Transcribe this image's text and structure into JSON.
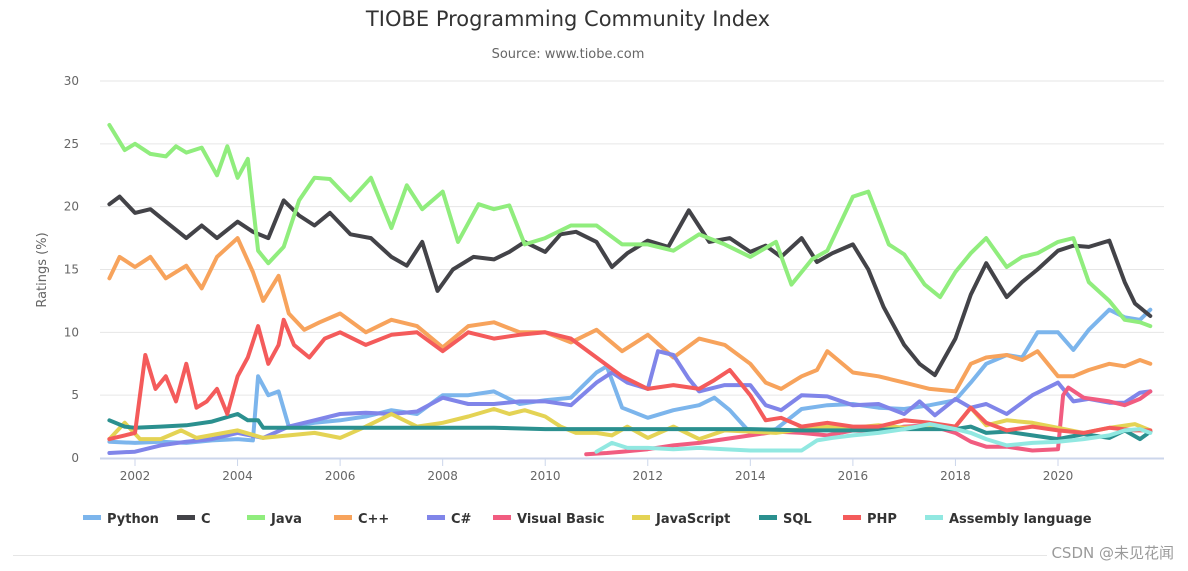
{
  "chart_data": {
    "type": "line",
    "title": "TIOBE Programming Community Index",
    "subtitle": "Source: www.tiobe.com",
    "xlabel": "",
    "ylabel": "Ratings (%)",
    "xlim": [
      2001.5,
      2021.9
    ],
    "ylim": [
      0,
      30
    ],
    "x_ticks": [
      2002,
      2004,
      2006,
      2008,
      2010,
      2012,
      2014,
      2016,
      2018,
      2020
    ],
    "x_tick_labels": [
      "2002",
      "2004",
      "2006",
      "2008",
      "2010",
      "2012",
      "2014",
      "2016",
      "2018",
      "2020"
    ],
    "y_ticks": [
      0,
      5,
      10,
      15,
      20,
      25,
      30
    ],
    "y_tick_labels": [
      "0",
      "5",
      "10",
      "15",
      "20",
      "25",
      "30"
    ],
    "grid": true,
    "legend_position": "bottom",
    "series": [
      {
        "name": "Python",
        "color": "#7cb5ec",
        "x": [
          2001.5,
          2002,
          2002.5,
          2003,
          2003.5,
          2004,
          2004.3,
          2004.4,
          2004.6,
          2004.8,
          2005,
          2005.5,
          2006,
          2006.5,
          2007,
          2007.5,
          2008,
          2008.5,
          2009,
          2009.5,
          2010,
          2010.5,
          2011,
          2011.2,
          2011.5,
          2012,
          2012.5,
          2013,
          2013.3,
          2013.6,
          2014,
          2014.5,
          2015,
          2015.5,
          2016,
          2016.5,
          2017,
          2017.5,
          2018,
          2018.3,
          2018.6,
          2019,
          2019.3,
          2019.6,
          2020,
          2020.3,
          2020.6,
          2021,
          2021.3,
          2021.6,
          2021.8
        ],
        "values": [
          1.3,
          1.2,
          1.3,
          1.2,
          1.4,
          1.5,
          1.4,
          6.5,
          5.0,
          5.3,
          2.5,
          2.8,
          3.0,
          3.3,
          3.8,
          3.5,
          5.0,
          5.0,
          5.3,
          4.3,
          4.6,
          4.8,
          6.8,
          7.3,
          4.0,
          3.2,
          3.8,
          4.2,
          4.8,
          3.8,
          2.0,
          2.3,
          3.9,
          4.2,
          4.3,
          4.0,
          3.9,
          4.2,
          4.6,
          6.0,
          7.5,
          8.2,
          8.0,
          10.0,
          10.0,
          8.6,
          10.2,
          11.8,
          11.2,
          11.0,
          11.8
        ]
      },
      {
        "name": "C",
        "color": "#434348",
        "x": [
          2001.5,
          2001.7,
          2002,
          2002.3,
          2002.6,
          2003,
          2003.3,
          2003.6,
          2004,
          2004.3,
          2004.6,
          2004.9,
          2005.2,
          2005.5,
          2005.8,
          2006.2,
          2006.6,
          2007,
          2007.3,
          2007.6,
          2007.9,
          2008.2,
          2008.6,
          2009,
          2009.3,
          2009.6,
          2010,
          2010.3,
          2010.6,
          2011,
          2011.3,
          2011.6,
          2012,
          2012.4,
          2012.8,
          2013.2,
          2013.6,
          2014,
          2014.3,
          2014.6,
          2015,
          2015.3,
          2015.6,
          2016,
          2016.3,
          2016.6,
          2017,
          2017.3,
          2017.6,
          2018,
          2018.3,
          2018.6,
          2019,
          2019.3,
          2019.6,
          2020,
          2020.3,
          2020.6,
          2021,
          2021.3,
          2021.5,
          2021.8
        ],
        "values": [
          20.2,
          20.8,
          19.5,
          19.8,
          18.8,
          17.5,
          18.5,
          17.5,
          18.8,
          18.0,
          17.5,
          20.5,
          19.3,
          18.5,
          19.5,
          17.8,
          17.5,
          16.0,
          15.3,
          17.2,
          13.3,
          15.0,
          16.0,
          15.8,
          16.4,
          17.2,
          16.4,
          17.8,
          18.0,
          17.2,
          15.2,
          16.3,
          17.3,
          16.8,
          19.7,
          17.2,
          17.5,
          16.4,
          16.9,
          16.0,
          17.5,
          15.6,
          16.3,
          17.0,
          15.0,
          12.0,
          9.0,
          7.5,
          6.6,
          9.5,
          13.0,
          15.5,
          12.8,
          14.0,
          15.0,
          16.5,
          16.9,
          16.8,
          17.3,
          14.0,
          12.3,
          11.3
        ]
      },
      {
        "name": "Java",
        "color": "#90ed7d",
        "x": [
          2001.5,
          2001.8,
          2002,
          2002.3,
          2002.6,
          2002.8,
          2003,
          2003.3,
          2003.6,
          2003.8,
          2004,
          2004.2,
          2004.4,
          2004.6,
          2004.9,
          2005.2,
          2005.5,
          2005.8,
          2006.2,
          2006.6,
          2007,
          2007.3,
          2007.6,
          2008,
          2008.3,
          2008.7,
          2009,
          2009.3,
          2009.6,
          2010,
          2010.5,
          2011,
          2011.5,
          2012,
          2012.5,
          2013,
          2013.5,
          2014,
          2014.5,
          2014.8,
          2015.2,
          2015.5,
          2016,
          2016.3,
          2016.7,
          2017,
          2017.4,
          2017.7,
          2018,
          2018.3,
          2018.6,
          2019,
          2019.3,
          2019.6,
          2020,
          2020.3,
          2020.6,
          2021,
          2021.3,
          2021.6,
          2021.8
        ],
        "values": [
          26.5,
          24.5,
          25.0,
          24.2,
          24.0,
          24.8,
          24.3,
          24.7,
          22.5,
          24.8,
          22.3,
          23.8,
          16.5,
          15.5,
          16.8,
          20.5,
          22.3,
          22.2,
          20.5,
          22.3,
          18.3,
          21.7,
          19.8,
          21.2,
          17.2,
          20.2,
          19.8,
          20.1,
          17.0,
          17.5,
          18.5,
          18.5,
          17.0,
          17.0,
          16.5,
          17.8,
          17.0,
          16.0,
          17.2,
          13.8,
          15.8,
          16.5,
          20.8,
          21.2,
          17.0,
          16.2,
          13.8,
          12.8,
          14.8,
          16.3,
          17.5,
          15.2,
          16.0,
          16.3,
          17.2,
          17.5,
          14.0,
          12.5,
          11.0,
          10.8,
          10.5
        ]
      },
      {
        "name": "C++",
        "color": "#f7a35c",
        "x": [
          2001.5,
          2001.7,
          2002,
          2002.3,
          2002.6,
          2003,
          2003.3,
          2003.6,
          2004,
          2004.3,
          2004.5,
          2004.8,
          2005,
          2005.3,
          2005.6,
          2006,
          2006.5,
          2007,
          2007.5,
          2008,
          2008.5,
          2009,
          2009.5,
          2010,
          2010.5,
          2011,
          2011.5,
          2012,
          2012.5,
          2013,
          2013.5,
          2014,
          2014.3,
          2014.6,
          2015,
          2015.3,
          2015.5,
          2016,
          2016.5,
          2017,
          2017.5,
          2018,
          2018.3,
          2018.6,
          2019,
          2019.3,
          2019.6,
          2020,
          2020.3,
          2020.6,
          2021,
          2021.3,
          2021.6,
          2021.8
        ],
        "values": [
          14.3,
          16.0,
          15.2,
          16.0,
          14.3,
          15.3,
          13.5,
          16.0,
          17.5,
          14.8,
          12.5,
          14.5,
          11.5,
          10.2,
          10.8,
          11.5,
          10.0,
          11.0,
          10.5,
          8.8,
          10.5,
          10.8,
          10.0,
          10.0,
          9.2,
          10.2,
          8.5,
          9.8,
          8.0,
          9.5,
          9.0,
          7.5,
          6.0,
          5.5,
          6.5,
          7.0,
          8.5,
          6.8,
          6.5,
          6.0,
          5.5,
          5.3,
          7.5,
          8.0,
          8.2,
          7.8,
          8.5,
          6.5,
          6.5,
          7.0,
          7.5,
          7.3,
          7.8,
          7.5
        ]
      },
      {
        "name": "C#",
        "color": "#8085e9",
        "x": [
          2001.5,
          2002,
          2002.5,
          2003,
          2003.5,
          2004,
          2004.5,
          2005,
          2005.5,
          2006,
          2006.5,
          2007,
          2007.5,
          2008,
          2008.5,
          2009,
          2009.5,
          2010,
          2010.5,
          2011,
          2011.3,
          2011.6,
          2012,
          2012.2,
          2012.5,
          2012.8,
          2013,
          2013.5,
          2014,
          2014.3,
          2014.6,
          2015,
          2015.5,
          2016,
          2016.5,
          2017,
          2017.3,
          2017.6,
          2018,
          2018.3,
          2018.6,
          2019,
          2019.5,
          2020,
          2020.3,
          2020.6,
          2021,
          2021.3,
          2021.6,
          2021.8
        ],
        "values": [
          0.4,
          0.5,
          1.0,
          1.3,
          1.5,
          2.0,
          1.6,
          2.5,
          3.0,
          3.5,
          3.6,
          3.5,
          3.7,
          4.8,
          4.3,
          4.3,
          4.5,
          4.5,
          4.2,
          6.0,
          6.8,
          6.0,
          5.5,
          8.5,
          8.2,
          6.3,
          5.3,
          5.8,
          5.8,
          4.2,
          3.8,
          5.0,
          4.9,
          4.2,
          4.3,
          3.5,
          4.5,
          3.4,
          4.7,
          4.0,
          4.3,
          3.5,
          5.0,
          6.0,
          4.5,
          4.7,
          4.4,
          4.4,
          5.2,
          5.3
        ]
      },
      {
        "name": "Visual Basic",
        "color": "#f15c80",
        "x": [
          2010.8,
          2011.2,
          2011.5,
          2012,
          2012.5,
          2013,
          2013.5,
          2014,
          2014.5,
          2015,
          2015.5,
          2016,
          2016.5,
          2017,
          2017.5,
          2018,
          2018.3,
          2018.6,
          2019,
          2019.5,
          2020,
          2020.1,
          2020.2,
          2020.5,
          2021,
          2021.3,
          2021.6,
          2021.8
        ],
        "values": [
          0.3,
          0.4,
          0.5,
          0.7,
          1.0,
          1.2,
          1.5,
          1.8,
          2.1,
          2.0,
          1.8,
          2.2,
          2.1,
          2.5,
          2.6,
          2.0,
          1.3,
          0.9,
          0.9,
          0.6,
          0.7,
          5.0,
          5.6,
          4.8,
          4.5,
          4.2,
          4.7,
          5.3
        ]
      },
      {
        "name": "JavaScript",
        "color": "#e4d354",
        "x": [
          2001.5,
          2001.8,
          2002.1,
          2002.5,
          2002.9,
          2003.2,
          2003.6,
          2004,
          2004.5,
          2005,
          2005.5,
          2006,
          2006.5,
          2007,
          2007.5,
          2008,
          2008.5,
          2009,
          2009.3,
          2009.6,
          2010,
          2010.3,
          2010.6,
          2011,
          2011.3,
          2011.6,
          2012,
          2012.5,
          2013,
          2013.5,
          2014,
          2014.5,
          2015,
          2015.5,
          2016,
          2016.5,
          2017,
          2017.5,
          2018,
          2018.3,
          2018.6,
          2019,
          2019.5,
          2020,
          2020.5,
          2021,
          2021.5,
          2021.8
        ],
        "values": [
          1.5,
          2.8,
          1.5,
          1.5,
          2.2,
          1.6,
          1.9,
          2.2,
          1.6,
          1.8,
          2.0,
          1.6,
          2.5,
          3.5,
          2.5,
          2.8,
          3.3,
          3.9,
          3.5,
          3.8,
          3.3,
          2.5,
          2.0,
          2.0,
          1.8,
          2.5,
          1.6,
          2.5,
          1.5,
          2.2,
          2.1,
          2.0,
          2.3,
          2.5,
          2.4,
          2.6,
          2.4,
          2.5,
          2.5,
          4.0,
          2.6,
          3.0,
          2.8,
          2.4,
          2.0,
          2.4,
          2.7,
          2.2
        ]
      },
      {
        "name": "SQL",
        "color": "#2b908f",
        "x": [
          2001.5,
          2001.8,
          2002,
          2002.5,
          2003,
          2003.5,
          2004,
          2004.2,
          2004.4,
          2004.5,
          2005,
          2006,
          2007,
          2008,
          2009,
          2010,
          2011,
          2012,
          2013,
          2014,
          2015,
          2016,
          2017,
          2018,
          2018.3,
          2018.6,
          2019,
          2019.5,
          2020,
          2020.5,
          2021,
          2021.3,
          2021.6,
          2021.8
        ],
        "values": [
          3.0,
          2.5,
          2.4,
          2.5,
          2.6,
          2.9,
          3.5,
          3.0,
          3.0,
          2.4,
          2.4,
          2.4,
          2.4,
          2.4,
          2.4,
          2.3,
          2.3,
          2.3,
          2.3,
          2.3,
          2.2,
          2.2,
          2.3,
          2.3,
          2.5,
          2.0,
          2.1,
          1.8,
          1.5,
          1.9,
          1.6,
          2.2,
          1.5,
          2.1
        ]
      },
      {
        "name": "PHP",
        "color": "#f45b5b",
        "x": [
          2001.5,
          2001.8,
          2002,
          2002.2,
          2002.4,
          2002.6,
          2002.8,
          2003,
          2003.2,
          2003.4,
          2003.6,
          2003.8,
          2004,
          2004.2,
          2004.4,
          2004.6,
          2004.8,
          2004.9,
          2005.1,
          2005.4,
          2005.7,
          2006,
          2006.5,
          2007,
          2007.5,
          2008,
          2008.5,
          2009,
          2009.5,
          2010,
          2010.5,
          2011,
          2011.5,
          2012,
          2012.5,
          2013,
          2013.3,
          2013.6,
          2014,
          2014.3,
          2014.6,
          2015,
          2015.5,
          2016,
          2016.5,
          2017,
          2017.5,
          2018,
          2018.3,
          2018.6,
          2019,
          2019.5,
          2020,
          2020.5,
          2021,
          2021.5,
          2021.8
        ],
        "values": [
          1.5,
          1.8,
          2.0,
          8.2,
          5.5,
          6.5,
          4.5,
          7.5,
          4.0,
          4.5,
          5.5,
          3.5,
          6.5,
          8.0,
          10.5,
          7.5,
          9.0,
          11.0,
          9.0,
          8.0,
          9.5,
          10.0,
          9.0,
          9.8,
          10.0,
          8.5,
          10.0,
          9.5,
          9.8,
          10.0,
          9.5,
          8.0,
          6.5,
          5.5,
          5.8,
          5.5,
          6.2,
          7.0,
          5.0,
          3.0,
          3.2,
          2.5,
          2.8,
          2.5,
          2.5,
          3.0,
          2.8,
          2.5,
          4.0,
          2.8,
          2.2,
          2.5,
          2.2,
          2.0,
          2.4,
          2.2,
          2.2
        ]
      },
      {
        "name": "Assembly language",
        "color": "#91e8e1",
        "x": [
          2011,
          2011.3,
          2011.6,
          2012,
          2012.5,
          2013,
          2013.5,
          2014,
          2014.5,
          2015,
          2015.3,
          2015.6,
          2016,
          2016.5,
          2017,
          2017.5,
          2018,
          2018.3,
          2018.6,
          2019,
          2019.5,
          2020,
          2020.5,
          2021,
          2021.3,
          2021.6,
          2021.8
        ],
        "values": [
          0.5,
          1.2,
          0.8,
          0.8,
          0.7,
          0.8,
          0.7,
          0.6,
          0.6,
          0.6,
          1.4,
          1.6,
          1.8,
          2.0,
          2.3,
          2.7,
          2.3,
          2.0,
          1.5,
          1.0,
          1.2,
          1.3,
          1.5,
          1.8,
          2.2,
          2.3,
          2.0
        ]
      }
    ]
  },
  "watermark": "CSDN @未见花闻"
}
